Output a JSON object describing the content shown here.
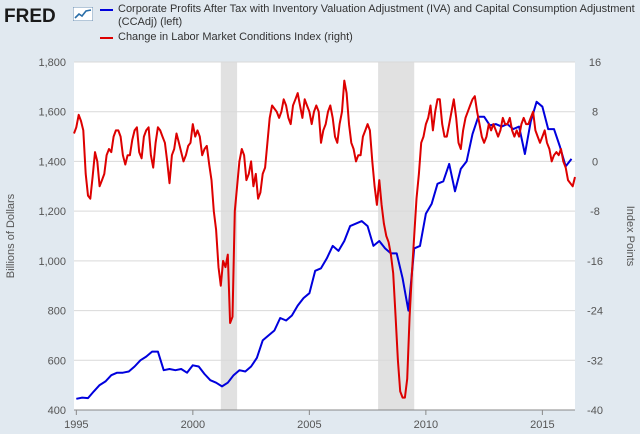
{
  "header": {
    "logo_text": "FRED"
  },
  "chart_data": {
    "type": "line",
    "y_left": {
      "label": "Billions of Dollars",
      "range": [
        400,
        1800
      ],
      "ticks": [
        400,
        600,
        800,
        1000,
        1200,
        1400,
        1600,
        1800
      ],
      "tick_labels": [
        "400",
        "600",
        "800",
        "1,000",
        "1,200",
        "1,400",
        "1,600",
        "1,800"
      ]
    },
    "y_right": {
      "label": "Index Points",
      "range": [
        -40,
        16
      ],
      "ticks": [
        -40,
        -32,
        -24,
        -16,
        -8,
        0,
        8,
        16
      ],
      "tick_labels": [
        "-40",
        "-32",
        "-24",
        "-16",
        "-8",
        "0",
        "8",
        "16"
      ]
    },
    "x_axis": {
      "range": [
        1994.9,
        2016.4
      ],
      "ticks": [
        1995,
        2000,
        2005,
        2010,
        2015
      ],
      "tick_labels": [
        "1995",
        "2000",
        "2005",
        "2010",
        "2015"
      ]
    },
    "recessions": [
      [
        2001.2,
        2001.9
      ],
      [
        2007.95,
        2009.5
      ]
    ],
    "grid": true,
    "legend": "top",
    "series": [
      {
        "name": "Corporate Profits After Tax with Inventory Valuation Adjustment (IVA) and Capital Consumption Adjustment (CCAdj) (left)",
        "color": "#0000dd",
        "axis": "left",
        "points": [
          [
            1995.0,
            445
          ],
          [
            1995.25,
            450
          ],
          [
            1995.5,
            448
          ],
          [
            1995.75,
            475
          ],
          [
            1996.0,
            500
          ],
          [
            1996.25,
            515
          ],
          [
            1996.5,
            540
          ],
          [
            1996.75,
            550
          ],
          [
            1997.0,
            550
          ],
          [
            1997.25,
            555
          ],
          [
            1997.5,
            575
          ],
          [
            1997.75,
            600
          ],
          [
            1998.0,
            615
          ],
          [
            1998.25,
            635
          ],
          [
            1998.5,
            635
          ],
          [
            1998.75,
            560
          ],
          [
            1999.0,
            565
          ],
          [
            1999.25,
            560
          ],
          [
            1999.5,
            565
          ],
          [
            1999.75,
            550
          ],
          [
            2000.0,
            580
          ],
          [
            2000.25,
            575
          ],
          [
            2000.5,
            545
          ],
          [
            2000.75,
            520
          ],
          [
            2001.0,
            510
          ],
          [
            2001.25,
            495
          ],
          [
            2001.5,
            510
          ],
          [
            2001.75,
            540
          ],
          [
            2002.0,
            560
          ],
          [
            2002.25,
            555
          ],
          [
            2002.5,
            575
          ],
          [
            2002.75,
            610
          ],
          [
            2003.0,
            680
          ],
          [
            2003.25,
            700
          ],
          [
            2003.5,
            720
          ],
          [
            2003.75,
            770
          ],
          [
            2004.0,
            760
          ],
          [
            2004.25,
            780
          ],
          [
            2004.5,
            820
          ],
          [
            2004.75,
            850
          ],
          [
            2005.0,
            870
          ],
          [
            2005.25,
            960
          ],
          [
            2005.5,
            970
          ],
          [
            2005.75,
            1010
          ],
          [
            2006.0,
            1060
          ],
          [
            2006.25,
            1040
          ],
          [
            2006.5,
            1080
          ],
          [
            2006.75,
            1140
          ],
          [
            2007.0,
            1150
          ],
          [
            2007.25,
            1160
          ],
          [
            2007.5,
            1140
          ],
          [
            2007.75,
            1060
          ],
          [
            2008.0,
            1080
          ],
          [
            2008.25,
            1050
          ],
          [
            2008.5,
            1030
          ],
          [
            2008.75,
            1030
          ],
          [
            2009.0,
            930
          ],
          [
            2009.25,
            800
          ],
          [
            2009.5,
            1050
          ],
          [
            2009.75,
            1060
          ],
          [
            2010.0,
            1190
          ],
          [
            2010.25,
            1230
          ],
          [
            2010.5,
            1310
          ],
          [
            2010.75,
            1320
          ],
          [
            2011.0,
            1390
          ],
          [
            2011.25,
            1280
          ],
          [
            2011.5,
            1370
          ],
          [
            2011.75,
            1400
          ],
          [
            2012.0,
            1510
          ],
          [
            2012.25,
            1580
          ],
          [
            2012.5,
            1580
          ],
          [
            2012.75,
            1545
          ],
          [
            2013.0,
            1550
          ],
          [
            2013.25,
            1540
          ],
          [
            2013.5,
            1550
          ],
          [
            2013.75,
            1530
          ],
          [
            2014.0,
            1540
          ],
          [
            2014.25,
            1430
          ],
          [
            2014.5,
            1560
          ],
          [
            2014.75,
            1640
          ],
          [
            2015.0,
            1620
          ],
          [
            2015.25,
            1530
          ],
          [
            2015.5,
            1530
          ],
          [
            2015.75,
            1460
          ],
          [
            2016.0,
            1380
          ],
          [
            2016.25,
            1410
          ]
        ]
      },
      {
        "name": "Change in Labor Market Conditions Index (right)",
        "color": "#dd0000",
        "axis": "right",
        "points": [
          [
            1994.9,
            4.5
          ],
          [
            1995.0,
            5.5
          ],
          [
            1995.1,
            7.5
          ],
          [
            1995.2,
            6.5
          ],
          [
            1995.3,
            5
          ],
          [
            1995.4,
            -2
          ],
          [
            1995.5,
            -5.5
          ],
          [
            1995.6,
            -6
          ],
          [
            1995.7,
            -2.5
          ],
          [
            1995.8,
            1.5
          ],
          [
            1995.9,
            0
          ],
          [
            1996.0,
            -4
          ],
          [
            1996.1,
            -3
          ],
          [
            1996.2,
            -2
          ],
          [
            1996.3,
            1
          ],
          [
            1996.4,
            2
          ],
          [
            1996.5,
            1.5
          ],
          [
            1996.6,
            4
          ],
          [
            1996.7,
            5
          ],
          [
            1996.8,
            5
          ],
          [
            1996.9,
            4
          ],
          [
            1997.0,
            1
          ],
          [
            1997.1,
            -0.5
          ],
          [
            1997.2,
            1
          ],
          [
            1997.3,
            1
          ],
          [
            1997.4,
            3.5
          ],
          [
            1997.5,
            5
          ],
          [
            1997.6,
            5.5
          ],
          [
            1997.7,
            1.5
          ],
          [
            1997.8,
            0.5
          ],
          [
            1997.9,
            4
          ],
          [
            1998.0,
            5
          ],
          [
            1998.1,
            5.5
          ],
          [
            1998.2,
            1
          ],
          [
            1998.3,
            -1
          ],
          [
            1998.4,
            3
          ],
          [
            1998.5,
            5.5
          ],
          [
            1998.6,
            5
          ],
          [
            1998.7,
            4
          ],
          [
            1998.8,
            3
          ],
          [
            1998.9,
            0
          ],
          [
            1999.0,
            -3.5
          ],
          [
            1999.1,
            1
          ],
          [
            1999.2,
            2
          ],
          [
            1999.3,
            4.5
          ],
          [
            1999.4,
            3
          ],
          [
            1999.5,
            1.5
          ],
          [
            1999.6,
            0
          ],
          [
            1999.7,
            1
          ],
          [
            1999.8,
            2.5
          ],
          [
            1999.9,
            3
          ],
          [
            2000.0,
            6
          ],
          [
            2000.1,
            4
          ],
          [
            2000.2,
            5
          ],
          [
            2000.3,
            4
          ],
          [
            2000.4,
            1
          ],
          [
            2000.5,
            2
          ],
          [
            2000.6,
            2.5
          ],
          [
            2000.7,
            -0.5
          ],
          [
            2000.8,
            -3
          ],
          [
            2000.9,
            -8
          ],
          [
            2001.0,
            -11
          ],
          [
            2001.1,
            -17
          ],
          [
            2001.2,
            -20
          ],
          [
            2001.3,
            -16
          ],
          [
            2001.4,
            -17
          ],
          [
            2001.5,
            -15
          ],
          [
            2001.6,
            -26
          ],
          [
            2001.7,
            -25
          ],
          [
            2001.8,
            -8
          ],
          [
            2001.9,
            -4
          ],
          [
            2002.0,
            0
          ],
          [
            2002.1,
            2
          ],
          [
            2002.2,
            1
          ],
          [
            2002.3,
            -3
          ],
          [
            2002.4,
            -2
          ],
          [
            2002.5,
            0
          ],
          [
            2002.6,
            -4
          ],
          [
            2002.7,
            -2
          ],
          [
            2002.8,
            -6
          ],
          [
            2002.9,
            -5
          ],
          [
            2003.0,
            -2
          ],
          [
            2003.1,
            -1
          ],
          [
            2003.2,
            3
          ],
          [
            2003.3,
            7
          ],
          [
            2003.4,
            9
          ],
          [
            2003.5,
            8.5
          ],
          [
            2003.6,
            8
          ],
          [
            2003.7,
            7
          ],
          [
            2003.8,
            8
          ],
          [
            2003.9,
            10
          ],
          [
            2004.0,
            9
          ],
          [
            2004.1,
            7
          ],
          [
            2004.2,
            6
          ],
          [
            2004.3,
            9
          ],
          [
            2004.4,
            10
          ],
          [
            2004.5,
            11
          ],
          [
            2004.6,
            9
          ],
          [
            2004.7,
            7
          ],
          [
            2004.8,
            10
          ],
          [
            2004.9,
            9
          ],
          [
            2005.0,
            8
          ],
          [
            2005.1,
            6
          ],
          [
            2005.2,
            8
          ],
          [
            2005.3,
            9
          ],
          [
            2005.4,
            8
          ],
          [
            2005.5,
            3
          ],
          [
            2005.6,
            5
          ],
          [
            2005.7,
            6
          ],
          [
            2005.8,
            8
          ],
          [
            2005.9,
            9
          ],
          [
            2006.0,
            7
          ],
          [
            2006.1,
            4
          ],
          [
            2006.2,
            3
          ],
          [
            2006.3,
            6
          ],
          [
            2006.4,
            8
          ],
          [
            2006.5,
            13
          ],
          [
            2006.6,
            11
          ],
          [
            2006.7,
            6
          ],
          [
            2006.8,
            3
          ],
          [
            2006.9,
            2
          ],
          [
            2007.0,
            0
          ],
          [
            2007.1,
            1
          ],
          [
            2007.2,
            1
          ],
          [
            2007.3,
            4
          ],
          [
            2007.4,
            5
          ],
          [
            2007.5,
            6
          ],
          [
            2007.6,
            5
          ],
          [
            2007.7,
            0
          ],
          [
            2007.8,
            -4
          ],
          [
            2007.9,
            -7
          ],
          [
            2008.0,
            -3
          ],
          [
            2008.1,
            -7
          ],
          [
            2008.2,
            -10
          ],
          [
            2008.3,
            -12
          ],
          [
            2008.4,
            -13
          ],
          [
            2008.5,
            -15
          ],
          [
            2008.6,
            -18
          ],
          [
            2008.7,
            -25
          ],
          [
            2008.8,
            -32
          ],
          [
            2008.9,
            -37
          ],
          [
            2009.0,
            -38
          ],
          [
            2009.1,
            -38
          ],
          [
            2009.2,
            -35
          ],
          [
            2009.3,
            -25
          ],
          [
            2009.4,
            -18
          ],
          [
            2009.5,
            -12
          ],
          [
            2009.6,
            -6
          ],
          [
            2009.7,
            -2
          ],
          [
            2009.8,
            3
          ],
          [
            2009.9,
            4
          ],
          [
            2010.0,
            6
          ],
          [
            2010.1,
            7
          ],
          [
            2010.2,
            9
          ],
          [
            2010.3,
            5
          ],
          [
            2010.4,
            8
          ],
          [
            2010.5,
            10
          ],
          [
            2010.6,
            10
          ],
          [
            2010.7,
            6
          ],
          [
            2010.8,
            4
          ],
          [
            2010.9,
            4
          ],
          [
            2011.0,
            6
          ],
          [
            2011.1,
            8
          ],
          [
            2011.2,
            10
          ],
          [
            2011.3,
            7
          ],
          [
            2011.4,
            3
          ],
          [
            2011.5,
            2
          ],
          [
            2011.6,
            5
          ],
          [
            2011.7,
            7
          ],
          [
            2011.8,
            8
          ],
          [
            2011.9,
            9
          ],
          [
            2012.0,
            10
          ],
          [
            2012.1,
            10.5
          ],
          [
            2012.2,
            8
          ],
          [
            2012.3,
            6
          ],
          [
            2012.4,
            4
          ],
          [
            2012.5,
            3
          ],
          [
            2012.6,
            4
          ],
          [
            2012.7,
            6
          ],
          [
            2012.8,
            5
          ],
          [
            2012.9,
            6
          ],
          [
            2013.0,
            5
          ],
          [
            2013.1,
            4
          ],
          [
            2013.2,
            5
          ],
          [
            2013.3,
            7
          ],
          [
            2013.4,
            6
          ],
          [
            2013.5,
            6
          ],
          [
            2013.6,
            7
          ],
          [
            2013.7,
            5
          ],
          [
            2013.8,
            4
          ],
          [
            2013.9,
            5
          ],
          [
            2014.0,
            4
          ],
          [
            2014.1,
            6
          ],
          [
            2014.2,
            7
          ],
          [
            2014.3,
            6
          ],
          [
            2014.4,
            6
          ],
          [
            2014.5,
            7
          ],
          [
            2014.6,
            8
          ],
          [
            2014.7,
            5
          ],
          [
            2014.8,
            4
          ],
          [
            2014.9,
            3
          ],
          [
            2015.0,
            4
          ],
          [
            2015.1,
            5
          ],
          [
            2015.2,
            3
          ],
          [
            2015.3,
            2
          ],
          [
            2015.4,
            0
          ],
          [
            2015.5,
            1
          ],
          [
            2015.6,
            1.5
          ],
          [
            2015.7,
            1
          ],
          [
            2015.8,
            2
          ],
          [
            2015.9,
            0
          ],
          [
            2016.0,
            -1
          ],
          [
            2016.1,
            -3
          ],
          [
            2016.2,
            -3.5
          ],
          [
            2016.3,
            -4
          ],
          [
            2016.4,
            -2.5
          ]
        ]
      }
    ]
  }
}
